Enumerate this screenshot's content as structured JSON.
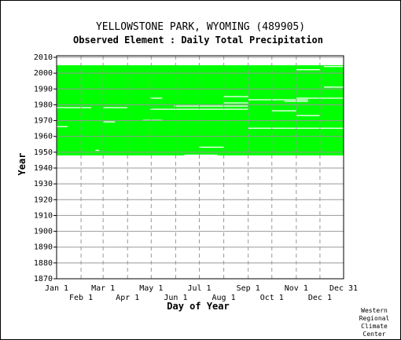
{
  "chart_data": {
    "type": "heatmap",
    "title": "YELLOWSTONE PARK, WYOMING   (489905)",
    "subtitle": "Observed Element : Daily Total Precipitation",
    "xlabel": "Day of Year",
    "ylabel": "Year",
    "x_ticks_top_row": [
      "Jan 1",
      "Mar 1",
      "May 1",
      "Jul 1",
      "Sep 1",
      "Nov 1",
      "Dec 31"
    ],
    "x_ticks_bottom_row": [
      "Feb 1",
      "Apr 1",
      "Jun 1",
      "Aug 1",
      "Oct 1",
      "Dec 1"
    ],
    "x_tick_days": [
      1,
      32,
      60,
      91,
      121,
      152,
      182,
      213,
      244,
      274,
      305,
      335,
      365
    ],
    "y_ticks": [
      1870,
      1880,
      1890,
      1900,
      1910,
      1920,
      1930,
      1940,
      1950,
      1960,
      1970,
      1980,
      1990,
      2000,
      2010
    ],
    "ylim": [
      1870,
      2011
    ],
    "xlim": [
      1,
      365
    ],
    "grid": true,
    "colors": {
      "data": "#00ff00",
      "missing": "#ffffff",
      "grid": "#999999"
    },
    "data_coverage": {
      "start_year": 1948,
      "end_year": 2004,
      "status": "data present (green) with scattered missing days (white)"
    },
    "gaps": [
      {
        "day_start": 1,
        "day_end": 15,
        "year": 1966
      },
      {
        "day_start": 1,
        "day_end": 45,
        "year": 1978
      },
      {
        "day_start": 60,
        "day_end": 91,
        "year": 1978
      },
      {
        "day_start": 110,
        "day_end": 135,
        "year": 1970
      },
      {
        "day_start": 120,
        "day_end": 135,
        "year": 1984
      },
      {
        "day_start": 120,
        "day_end": 244,
        "year": 1977
      },
      {
        "day_start": 150,
        "day_end": 244,
        "year": 1979
      },
      {
        "day_start": 163,
        "day_end": 205,
        "year": 1948
      },
      {
        "day_start": 182,
        "day_end": 213,
        "year": 1953
      },
      {
        "day_start": 213,
        "day_end": 244,
        "year": 1981
      },
      {
        "day_start": 213,
        "day_end": 244,
        "year": 1985
      },
      {
        "day_start": 244,
        "day_end": 290,
        "year": 1983
      },
      {
        "day_start": 244,
        "day_end": 365,
        "year": 1965
      },
      {
        "day_start": 274,
        "day_end": 305,
        "year": 1976
      },
      {
        "day_start": 290,
        "day_end": 320,
        "year": 1983
      },
      {
        "day_start": 290,
        "day_end": 320,
        "year": 1982
      },
      {
        "day_start": 305,
        "day_end": 335,
        "year": 1973
      },
      {
        "day_start": 305,
        "day_end": 365,
        "year": 1984
      },
      {
        "day_start": 305,
        "day_end": 335,
        "year": 2002
      },
      {
        "day_start": 60,
        "day_end": 75,
        "year": 1969
      },
      {
        "day_start": 50,
        "day_end": 55,
        "year": 1951
      },
      {
        "day_start": 340,
        "day_end": 365,
        "year": 2004
      },
      {
        "day_start": 340,
        "day_end": 365,
        "year": 1991
      }
    ]
  },
  "credit": [
    "Western",
    "Regional",
    "Climate",
    "Center"
  ]
}
